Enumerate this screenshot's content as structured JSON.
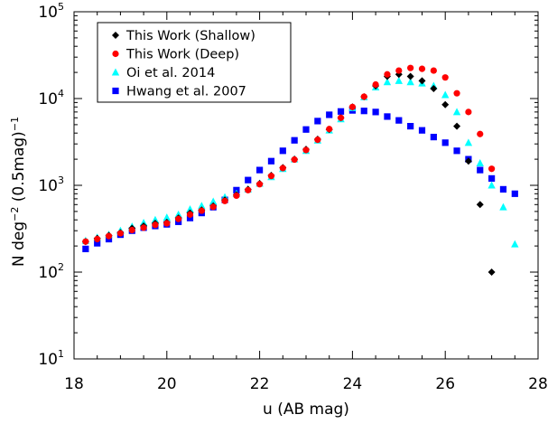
{
  "chart_data": {
    "type": "scatter",
    "xlabel": "u (AB mag)",
    "ylabel": {
      "pre": "N deg",
      "sup": "−2",
      "mid": " (0.5mag)",
      "sup2": "−1"
    },
    "xlim": [
      18,
      28
    ],
    "ylim": [
      10,
      100000
    ],
    "yscale": "log",
    "x_ticks": [
      "18",
      "20",
      "22",
      "24",
      "26",
      "28"
    ],
    "y_ticks": [
      {
        "base": "10",
        "exp": "1"
      },
      {
        "base": "10",
        "exp": "2"
      },
      {
        "base": "10",
        "exp": "3"
      },
      {
        "base": "10",
        "exp": "4"
      },
      {
        "base": "10",
        "exp": "5"
      }
    ],
    "legend_position": "top-left",
    "series": [
      {
        "name": "This Work (Shallow)",
        "marker": "diamond",
        "color": "#000000",
        "x": [
          18.25,
          18.5,
          18.75,
          19.0,
          19.25,
          19.5,
          19.75,
          20.0,
          20.25,
          20.5,
          20.75,
          21.0,
          21.25,
          21.5,
          21.75,
          22.0,
          22.25,
          22.5,
          22.75,
          23.0,
          23.25,
          23.5,
          23.75,
          24.0,
          24.25,
          24.5,
          24.75,
          25.0,
          25.25,
          25.5,
          25.75,
          26.0,
          26.25,
          26.5,
          26.75,
          27.0
        ],
        "y": [
          225,
          245,
          265,
          285,
          320,
          340,
          365,
          375,
          420,
          480,
          520,
          580,
          680,
          780,
          900,
          1050,
          1300,
          1600,
          2000,
          2600,
          3400,
          4400,
          6000,
          8000,
          10500,
          14000,
          18000,
          19000,
          18000,
          16000,
          13000,
          8500,
          4800,
          1900,
          600,
          100
        ]
      },
      {
        "name": "This Work (Deep)",
        "marker": "circle",
        "color": "#ff0000",
        "x": [
          18.25,
          18.5,
          18.75,
          19.0,
          19.25,
          19.5,
          19.75,
          20.0,
          20.25,
          20.5,
          20.75,
          21.0,
          21.25,
          21.5,
          21.75,
          22.0,
          22.25,
          22.5,
          22.75,
          23.0,
          23.25,
          23.5,
          23.75,
          24.0,
          24.25,
          24.5,
          24.75,
          25.0,
          25.25,
          25.5,
          25.75,
          26.0,
          26.25,
          26.5,
          26.75,
          27.0
        ],
        "y": [
          225,
          240,
          260,
          280,
          305,
          325,
          350,
          365,
          410,
          460,
          510,
          565,
          660,
          760,
          880,
          1030,
          1280,
          1580,
          1980,
          2550,
          3350,
          4450,
          6000,
          8000,
          10500,
          14500,
          19000,
          21000,
          22500,
          22000,
          21000,
          17500,
          11500,
          7000,
          3900,
          1550
        ]
      },
      {
        "name": "Oi et al. 2014",
        "marker": "triangle",
        "color": "#00ffff",
        "x": [
          18.25,
          18.5,
          18.75,
          19.0,
          19.25,
          19.5,
          19.75,
          20.0,
          20.25,
          20.5,
          20.75,
          21.0,
          21.25,
          21.5,
          21.75,
          22.0,
          22.25,
          22.5,
          22.75,
          23.0,
          23.25,
          23.5,
          23.75,
          24.0,
          24.25,
          24.5,
          24.75,
          25.0,
          25.25,
          25.5,
          25.75,
          26.0,
          26.25,
          26.5,
          26.75,
          27.0,
          27.25,
          27.5
        ],
        "y": [
          230,
          250,
          270,
          300,
          335,
          370,
          400,
          425,
          460,
          530,
          580,
          650,
          730,
          800,
          900,
          1050,
          1250,
          1550,
          2000,
          2500,
          3300,
          4300,
          5800,
          7800,
          10400,
          13500,
          15500,
          16000,
          15500,
          15000,
          14000,
          11000,
          7000,
          3100,
          1800,
          1000,
          560,
          210
        ]
      },
      {
        "name": "Hwang et al. 2007",
        "marker": "square",
        "color": "#0000ff",
        "x": [
          18.25,
          18.5,
          18.75,
          19.0,
          19.25,
          19.5,
          19.75,
          20.0,
          20.25,
          20.5,
          20.75,
          21.0,
          21.25,
          21.5,
          21.75,
          22.0,
          22.25,
          22.5,
          22.75,
          23.0,
          23.25,
          23.5,
          23.75,
          24.0,
          24.25,
          24.5,
          24.75,
          25.0,
          25.25,
          25.5,
          25.75,
          26.0,
          26.25,
          26.5,
          26.75,
          27.0,
          27.25,
          27.5
        ],
        "y": [
          185,
          215,
          240,
          270,
          300,
          325,
          340,
          355,
          380,
          420,
          480,
          560,
          680,
          880,
          1150,
          1500,
          1900,
          2500,
          3300,
          4400,
          5500,
          6500,
          7100,
          7300,
          7200,
          7000,
          6200,
          5600,
          4800,
          4300,
          3600,
          3100,
          2500,
          2000,
          1500,
          1200,
          900,
          800
        ]
      }
    ]
  }
}
